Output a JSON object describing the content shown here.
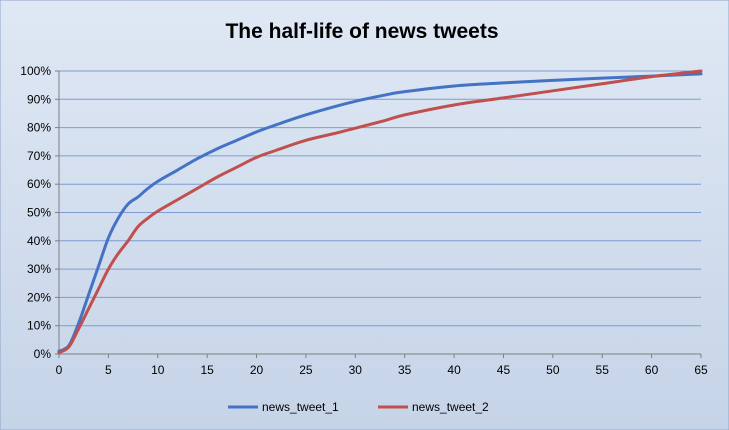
{
  "chart_data": {
    "type": "line",
    "title": "The half-life of news tweets",
    "xlabel": "",
    "ylabel": "",
    "xlim": [
      0,
      65
    ],
    "ylim": [
      0,
      1
    ],
    "x_ticks": [
      "0",
      "5",
      "10",
      "15",
      "20",
      "25",
      "30",
      "35",
      "40",
      "45",
      "50",
      "55",
      "60",
      "65"
    ],
    "y_ticks": [
      "0%",
      "10%",
      "20%",
      "30%",
      "40%",
      "50%",
      "60%",
      "70%",
      "80%",
      "90%",
      "100%"
    ],
    "grid": true,
    "legend_position": "bottom",
    "series": [
      {
        "name": "news_tweet_1",
        "color": "#4472C4",
        "x": [
          0,
          1,
          2,
          3,
          4,
          5,
          6,
          7,
          8,
          9,
          10,
          12,
          14,
          16,
          18,
          20,
          22,
          25,
          28,
          30,
          33,
          35,
          40,
          45,
          50,
          55,
          60,
          65
        ],
        "y": [
          0.01,
          0.03,
          0.11,
          0.21,
          0.31,
          0.41,
          0.48,
          0.53,
          0.555,
          0.585,
          0.61,
          0.65,
          0.69,
          0.725,
          0.755,
          0.785,
          0.81,
          0.845,
          0.875,
          0.893,
          0.915,
          0.927,
          0.947,
          0.958,
          0.967,
          0.975,
          0.982,
          0.99
        ]
      },
      {
        "name": "news_tweet_2",
        "color": "#C0504D",
        "x": [
          0,
          1,
          2,
          3,
          4,
          5,
          6,
          7,
          8,
          9,
          10,
          12,
          14,
          16,
          18,
          20,
          22,
          25,
          28,
          30,
          33,
          35,
          40,
          45,
          50,
          55,
          60,
          65
        ],
        "y": [
          0.005,
          0.025,
          0.09,
          0.16,
          0.23,
          0.3,
          0.355,
          0.4,
          0.45,
          0.48,
          0.505,
          0.545,
          0.585,
          0.625,
          0.66,
          0.695,
          0.72,
          0.755,
          0.78,
          0.798,
          0.825,
          0.845,
          0.88,
          0.905,
          0.93,
          0.955,
          0.98,
          1.0
        ]
      }
    ]
  }
}
